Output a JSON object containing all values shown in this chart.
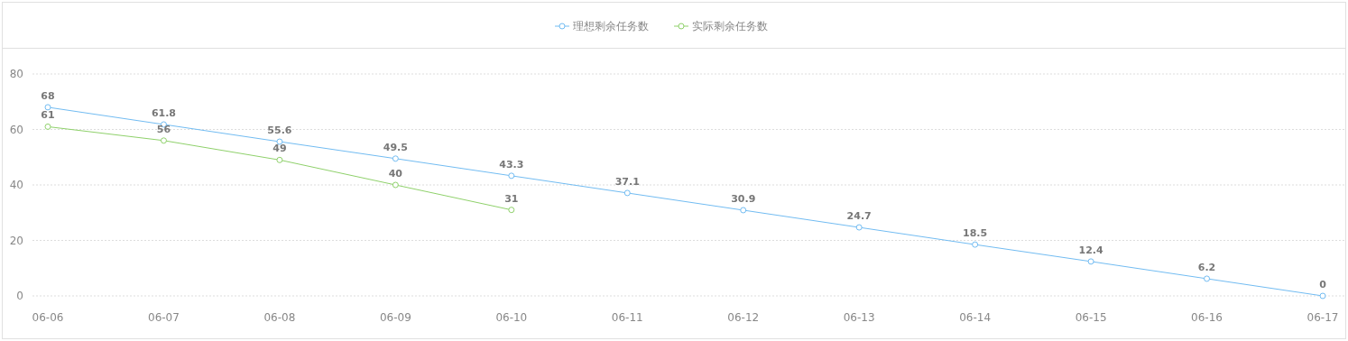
{
  "chart_data": {
    "type": "line",
    "categories": [
      "06-06",
      "06-07",
      "06-08",
      "06-09",
      "06-10",
      "06-11",
      "06-12",
      "06-13",
      "06-14",
      "06-15",
      "06-16",
      "06-17"
    ],
    "series": [
      {
        "name": "理想剩余任务数",
        "color": "#72bcf2",
        "values": [
          68,
          61.8,
          55.6,
          49.5,
          43.3,
          37.1,
          30.9,
          24.7,
          18.5,
          12.4,
          6.2,
          0
        ]
      },
      {
        "name": "实际剩余任务数",
        "color": "#8fd16b",
        "values": [
          61,
          56,
          49,
          40,
          31,
          null,
          null,
          null,
          null,
          null,
          null,
          null
        ]
      }
    ],
    "ylim": [
      0,
      80
    ],
    "yticks": [
      0,
      20,
      40,
      60,
      80
    ],
    "grid": "y",
    "legend": "top",
    "marker": "circle",
    "line_style": "solid",
    "data_labels": true
  }
}
